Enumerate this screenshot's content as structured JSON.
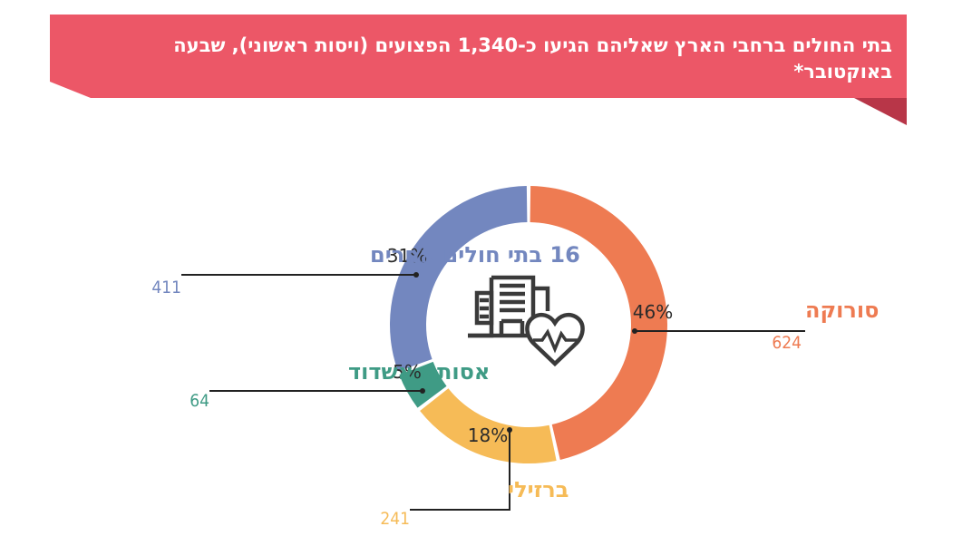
{
  "title": "בתי החולים ברחבי הארץ שאליהם הגיעו כ-1,340 הפצועים (ויסות ראשוני), שבעה באוקטובר*",
  "colors": {
    "banner": "#ec5767",
    "soroka": "#ee7b52",
    "barzilai": "#f6bb57",
    "assuta": "#3f9b85",
    "others": "#7387bf",
    "icon": "#3a3a3a"
  },
  "icon": "hospital-heart-icon",
  "chart_data": {
    "type": "pie",
    "title": "בתי החולים ברחבי הארץ שאליהם הגיעו כ-1,340 הפצועים (ויסות ראשוני), שבעה באוקטובר*",
    "slices": [
      {
        "key": "soroka",
        "label": "סורוקה",
        "value": 624,
        "percent": "46%"
      },
      {
        "key": "barzilai",
        "label": "ברזילי",
        "value": 241,
        "percent": "18%"
      },
      {
        "key": "assuta",
        "label": "אסותא אשדוד",
        "value": 64,
        "percent": "5%"
      },
      {
        "key": "others",
        "label": "16 בתי חולים אחרים",
        "value": 411,
        "percent": "31%"
      }
    ]
  }
}
